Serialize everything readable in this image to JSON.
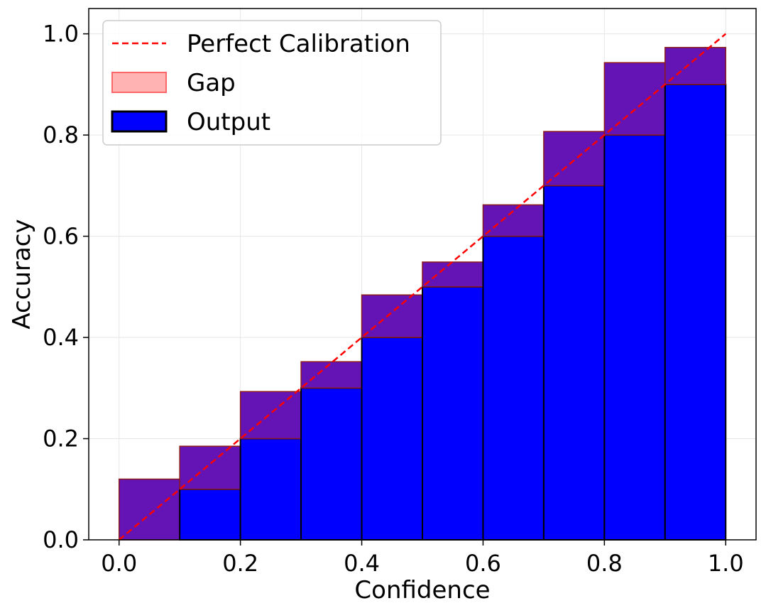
{
  "chart_data": {
    "type": "bar",
    "title": "",
    "xlabel": "Confidence",
    "ylabel": "Accuracy",
    "xlim": [
      -0.05,
      1.05
    ],
    "ylim": [
      0.0,
      1.05
    ],
    "xticks": [
      "0.0",
      "0.2",
      "0.4",
      "0.6",
      "0.8",
      "1.0"
    ],
    "yticks": [
      "0.0",
      "0.2",
      "0.4",
      "0.6",
      "0.8",
      "1.0"
    ],
    "grid": true,
    "legend_position": "top-left",
    "bin_width": 0.1,
    "bin_starts": [
      0.0,
      0.1,
      0.2,
      0.3,
      0.4,
      0.5,
      0.6,
      0.7,
      0.8,
      0.9
    ],
    "series": [
      {
        "name": "Output",
        "kind": "bar",
        "color": "#0000ff",
        "edgecolor": "#000000",
        "values": [
          0.0,
          0.1,
          0.2,
          0.3,
          0.4,
          0.5,
          0.6,
          0.7,
          0.8,
          0.9
        ]
      },
      {
        "name": "Gap",
        "kind": "bar",
        "color": "#ff0000",
        "alpha": 0.3,
        "edgecolor": "#ff0000",
        "bottom": [
          0.0,
          0.1,
          0.2,
          0.3,
          0.4,
          0.5,
          0.6,
          0.7,
          0.8,
          0.9
        ],
        "top": [
          0.12,
          0.185,
          0.293,
          0.352,
          0.484,
          0.549,
          0.662,
          0.807,
          0.943,
          0.973
        ]
      },
      {
        "name": "Perfect Calibration",
        "kind": "line",
        "style": "dashed",
        "color": "#ff0000",
        "x": [
          0.0,
          1.0
        ],
        "y": [
          0.0,
          1.0
        ]
      }
    ],
    "legend": [
      {
        "label": "Perfect Calibration",
        "kind": "line"
      },
      {
        "label": "Gap",
        "kind": "gap"
      },
      {
        "label": "Output",
        "kind": "output"
      }
    ],
    "overlap_color": "#6414b4"
  }
}
